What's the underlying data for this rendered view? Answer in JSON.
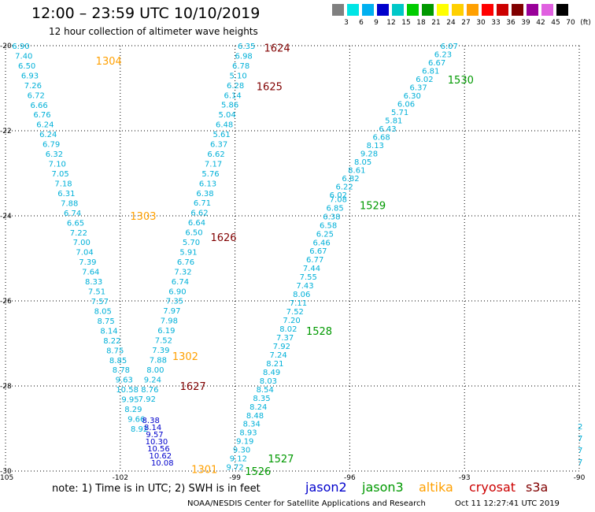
{
  "title": "12:00 – 23:59 UTC 10/10/2019",
  "subtitle": "12 hour collection of altimeter wave heights",
  "colorbar": {
    "colors": [
      "#808080",
      "#00e5e5",
      "#00b0f0",
      "#0000cc",
      "#00c8c8",
      "#00cc00",
      "#009900",
      "#ffff00",
      "#ffd000",
      "#ffa000",
      "#ff0000",
      "#cc0000",
      "#800000",
      "#990099",
      "#e060e0",
      "#000000"
    ],
    "labels": [
      "3",
      "6",
      "9",
      "12",
      "15",
      "18",
      "21",
      "24",
      "27",
      "30",
      "33",
      "36",
      "39",
      "42",
      "45",
      "70",
      "(ft)"
    ]
  },
  "map": {
    "lon_min": -105,
    "lon_max": -90,
    "lat_min": -30,
    "lat_max": -20,
    "lon_ticks": [
      "-105",
      "-102",
      "-99",
      "-96",
      "-93",
      "-90"
    ],
    "lat_ticks": [
      "-20",
      "-22",
      "-24",
      "-26",
      "-28",
      "-30"
    ]
  },
  "tracks": [
    {
      "color": "#00b0d8",
      "lon": [
        -104.6,
        -101.5
      ],
      "lat": [
        -20.0,
        -29.0
      ],
      "values": [
        "6.90",
        "7.40",
        "6.50",
        "6.93",
        "7.26",
        "6.72",
        "6.66",
        "6.76",
        "6.24",
        "6.24",
        "6.79",
        "6.32",
        "7.10",
        "7.05",
        "7.18",
        "6.31",
        "7.88",
        "6.74",
        "6.65",
        "7.22",
        "7.00",
        "7.04",
        "7.39",
        "7.64",
        "8.33",
        "7.51",
        "7.57",
        "8.05",
        "8.75",
        "8.14",
        "8.22",
        "8.75",
        "8.85",
        "8.78",
        "9.63",
        "10.58",
        "9.95",
        "8.29",
        "9.66",
        "8.92"
      ]
    },
    {
      "color": "#0000cc",
      "lon": [
        -101.2,
        -100.9
      ],
      "lat": [
        -28.8,
        -29.8
      ],
      "values": [
        "8.38",
        "8.14",
        "9.57",
        "10.30",
        "10.56",
        "10.62",
        "10.08"
      ]
    },
    {
      "color": "#00b0d8",
      "lon": [
        -98.7,
        -101.3
      ],
      "lat": [
        -20.0,
        -28.3
      ],
      "values": [
        "6.35",
        "6.98",
        "6.78",
        "5.10",
        "6.28",
        "6.14",
        "5.86",
        "5.04",
        "6.48",
        "5.61",
        "6.37",
        "6.62",
        "7.17",
        "5.76",
        "6.13",
        "6.38",
        "6.71",
        "6.62",
        "6.64",
        "6.50",
        "5.70",
        "5.91",
        "6.76",
        "7.32",
        "6.74",
        "6.90",
        "7.35",
        "7.97",
        "7.98",
        "6.19",
        "7.52",
        "7.39",
        "7.88",
        "8.00",
        "9.24",
        "8.76",
        "7.92"
      ]
    },
    {
      "color": "#00b0d8",
      "lon": [
        -93.4,
        -96.3
      ],
      "lat": [
        -20.0,
        -23.5
      ],
      "values": [
        "6.07",
        "6.23",
        "6.67",
        "6.81",
        "6.02",
        "6.37",
        "6.30",
        "6.06",
        "5.71",
        "5.81",
        "6.43",
        "6.68",
        "8.13",
        "9.28",
        "8.05",
        "8.61",
        "6.82",
        "6.22",
        "6.02"
      ]
    },
    {
      "color": "#00b0d8",
      "lon": [
        -96.3,
        -99.0
      ],
      "lat": [
        -23.6,
        -29.9
      ],
      "values": [
        "7.08",
        "6.85",
        "6.38",
        "6.58",
        "6.25",
        "6.46",
        "6.67",
        "6.77",
        "7.44",
        "7.55",
        "7.43",
        "8.06",
        "7.11",
        "7.52",
        "7.20",
        "8.02",
        "7.37",
        "7.92",
        "7.24",
        "8.21",
        "8.49",
        "8.03",
        "8.54",
        "8.35",
        "8.24",
        "8.48",
        "8.34",
        "8.93",
        "9.19",
        "9.30",
        "9.12",
        "9.72"
      ]
    }
  ],
  "time_labels": [
    {
      "text": "1304",
      "lon": -102.3,
      "lat": -20.35,
      "color": "#ffa000"
    },
    {
      "text": "1303",
      "lon": -101.4,
      "lat": -24.0,
      "color": "#ffa000"
    },
    {
      "text": "1302",
      "lon": -100.3,
      "lat": -27.3,
      "color": "#ffa000"
    },
    {
      "text": "1301",
      "lon": -99.8,
      "lat": -29.95,
      "color": "#ffa000"
    },
    {
      "text": "1624",
      "lon": -97.9,
      "lat": -20.05,
      "color": "#800000"
    },
    {
      "text": "1625",
      "lon": -98.1,
      "lat": -20.95,
      "color": "#800000"
    },
    {
      "text": "1626",
      "lon": -99.3,
      "lat": -24.5,
      "color": "#800000"
    },
    {
      "text": "1627",
      "lon": -100.1,
      "lat": -28.0,
      "color": "#800000"
    },
    {
      "text": "1530",
      "lon": -93.1,
      "lat": -20.8,
      "color": "#009900"
    },
    {
      "text": "1529",
      "lon": -95.4,
      "lat": -23.75,
      "color": "#009900"
    },
    {
      "text": "1528",
      "lon": -96.8,
      "lat": -26.7,
      "color": "#009900"
    },
    {
      "text": "1527",
      "lon": -97.8,
      "lat": -29.7,
      "color": "#009900"
    },
    {
      "text": "1526",
      "lon": -98.4,
      "lat": -30.0,
      "color": "#009900"
    }
  ],
  "edge_values": [
    "2",
    "7",
    "7",
    "7"
  ],
  "note": "note: 1) Time is in UTC; 2) SWH is in feet",
  "satellites": [
    {
      "name": "jason2",
      "color": "#0000cc"
    },
    {
      "name": "jason3",
      "color": "#009900"
    },
    {
      "name": "altika",
      "color": "#ffa000"
    },
    {
      "name": "cryosat",
      "color": "#cc0000"
    },
    {
      "name": "s3a",
      "color": "#800000"
    }
  ],
  "credit": "NOAA/NESDIS Center for Satellite Applications and Research",
  "timestamp": "Oct 11 12:27:41 UTC 2019"
}
